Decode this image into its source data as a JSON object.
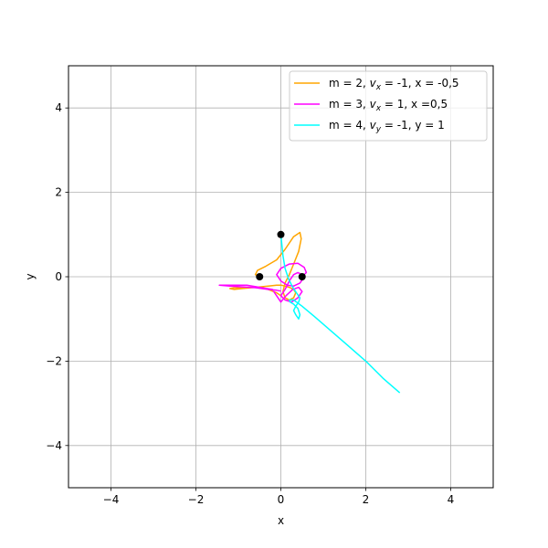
{
  "chart_data": {
    "type": "line",
    "xlabel": "x",
    "ylabel": "y",
    "xlim": [
      -5,
      5
    ],
    "ylim": [
      -5,
      5
    ],
    "grid": true,
    "legend_position": "top-right",
    "x_ticks": [
      -4,
      -2,
      0,
      2,
      4
    ],
    "y_ticks": [
      -4,
      -2,
      0,
      2,
      4
    ],
    "x_tick_labels": [
      "−4",
      "−2",
      "0",
      "2",
      "4"
    ],
    "y_tick_labels": [
      "−4",
      "−2",
      "0",
      "2",
      "4"
    ],
    "legend": [
      {
        "m": "m = 2, ",
        "v": "v",
        "sub": "x",
        "rest": " = -1, x = -0,5"
      },
      {
        "m": "m = 3, ",
        "v": "v",
        "sub": "x",
        "rest": " = 1, x =0,5"
      },
      {
        "m": "m = 4, ",
        "v": "v",
        "sub": "y",
        "rest": " = -1, y = 1"
      }
    ],
    "initial_positions": [
      {
        "x": -0.5,
        "y": 0
      },
      {
        "x": 0.5,
        "y": 0
      },
      {
        "x": 0,
        "y": 1
      }
    ],
    "series": [
      {
        "name": "m = 2, vx = -1, x = -0,5",
        "color": "#ffa500",
        "x": [
          -0.5,
          -0.6,
          -0.55,
          -0.35,
          -0.1,
          0.1,
          0.3,
          0.45,
          0.48,
          0.42,
          0.3,
          0.2,
          0.1,
          0.05,
          0.1,
          0.2,
          0.3,
          0.35,
          0.3,
          0.2,
          0.1,
          0.0,
          -0.1,
          -0.3,
          -0.6,
          -0.9,
          -1.1,
          -1.2,
          -1.1,
          -0.8,
          -0.5,
          -0.3,
          -0.1,
          0.0
        ],
        "y": [
          0.0,
          0.05,
          0.15,
          0.25,
          0.4,
          0.65,
          0.95,
          1.05,
          0.9,
          0.6,
          0.3,
          0.05,
          -0.15,
          -0.35,
          -0.5,
          -0.55,
          -0.5,
          -0.38,
          -0.3,
          -0.25,
          -0.22,
          -0.2,
          -0.2,
          -0.22,
          -0.25,
          -0.28,
          -0.3,
          -0.28,
          -0.26,
          -0.25,
          -0.25,
          -0.3,
          -0.38,
          -0.45
        ]
      },
      {
        "name": "m = 3, vx = 1, x =0,5",
        "color": "#ff00ff",
        "x": [
          0.5,
          0.6,
          0.55,
          0.4,
          0.2,
          0.0,
          -0.1,
          0.0,
          0.15,
          0.3,
          0.45,
          0.52,
          0.5,
          0.4,
          0.3,
          0.2,
          0.1,
          0.0,
          0.1,
          0.25,
          0.4,
          0.5,
          0.42,
          0.28,
          0.12,
          0.0,
          -0.2,
          -0.5,
          -0.8,
          -1.1,
          -1.35,
          -1.45,
          -1.2,
          -0.9,
          -0.6,
          -0.3,
          -0.1,
          0.0
        ],
        "y": [
          0.0,
          0.1,
          0.22,
          0.32,
          0.3,
          0.2,
          0.05,
          -0.1,
          -0.2,
          -0.22,
          -0.15,
          -0.05,
          0.05,
          0.1,
          0.05,
          -0.1,
          -0.3,
          -0.45,
          -0.55,
          -0.6,
          -0.5,
          -0.35,
          -0.25,
          -0.3,
          -0.45,
          -0.6,
          -0.3,
          -0.25,
          -0.2,
          -0.2,
          -0.2,
          -0.2,
          -0.22,
          -0.24,
          -0.26,
          -0.3,
          -0.32,
          -0.34
        ]
      },
      {
        "name": "m = 4, vy = -1, y = 1",
        "color": "#00ffff",
        "x": [
          0.0,
          0.02,
          0.05,
          0.1,
          0.18,
          0.28,
          0.38,
          0.45,
          0.42,
          0.35,
          0.3,
          0.35,
          0.42,
          0.45,
          0.4,
          0.3,
          0.22,
          0.2,
          0.3,
          0.5,
          0.8,
          1.2,
          1.6,
          2.0,
          2.4,
          2.8
        ],
        "y": [
          1.0,
          0.8,
          0.5,
          0.2,
          -0.05,
          -0.25,
          -0.4,
          -0.5,
          -0.6,
          -0.7,
          -0.8,
          -0.9,
          -1.0,
          -0.9,
          -0.75,
          -0.65,
          -0.6,
          -0.55,
          -0.55,
          -0.7,
          -0.95,
          -1.3,
          -1.65,
          -2.0,
          -2.4,
          -2.75
        ]
      }
    ]
  }
}
